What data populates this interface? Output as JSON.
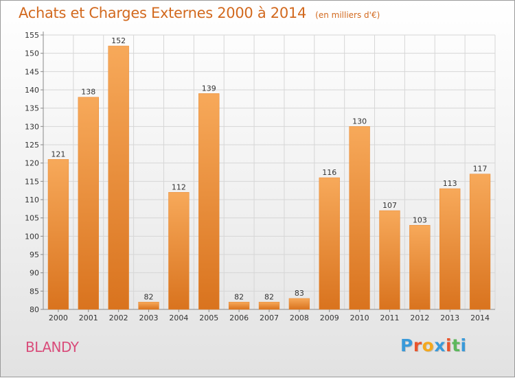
{
  "chart_data": {
    "type": "bar",
    "title": "Achats et Charges Externes 2000 à 2014",
    "subtitle": "(en milliers d'€)",
    "categories": [
      "2000",
      "2001",
      "2002",
      "2003",
      "2004",
      "2005",
      "2006",
      "2007",
      "2008",
      "2009",
      "2010",
      "2011",
      "2012",
      "2013",
      "2014"
    ],
    "values": [
      121,
      138,
      152,
      82,
      112,
      139,
      82,
      82,
      83,
      116,
      130,
      107,
      103,
      113,
      117
    ],
    "ylim": [
      80,
      155
    ],
    "yticks": [
      80,
      85,
      90,
      95,
      100,
      105,
      110,
      115,
      120,
      125,
      130,
      135,
      140,
      145,
      150,
      155
    ],
    "grid": true,
    "bar_color": "#f0923a",
    "bar_color_light": "#f7a95a",
    "bar_color_dark": "#d9731e"
  },
  "commune": "BLANDY",
  "logo": {
    "letters": [
      "P",
      "r",
      "o",
      "x",
      "i",
      "t",
      "i"
    ],
    "colors": [
      "#3a9ad9",
      "#e8552d",
      "#f4a81d",
      "#3a9ad9",
      "#e8552d",
      "#5cb85c",
      "#3a9ad9"
    ]
  }
}
